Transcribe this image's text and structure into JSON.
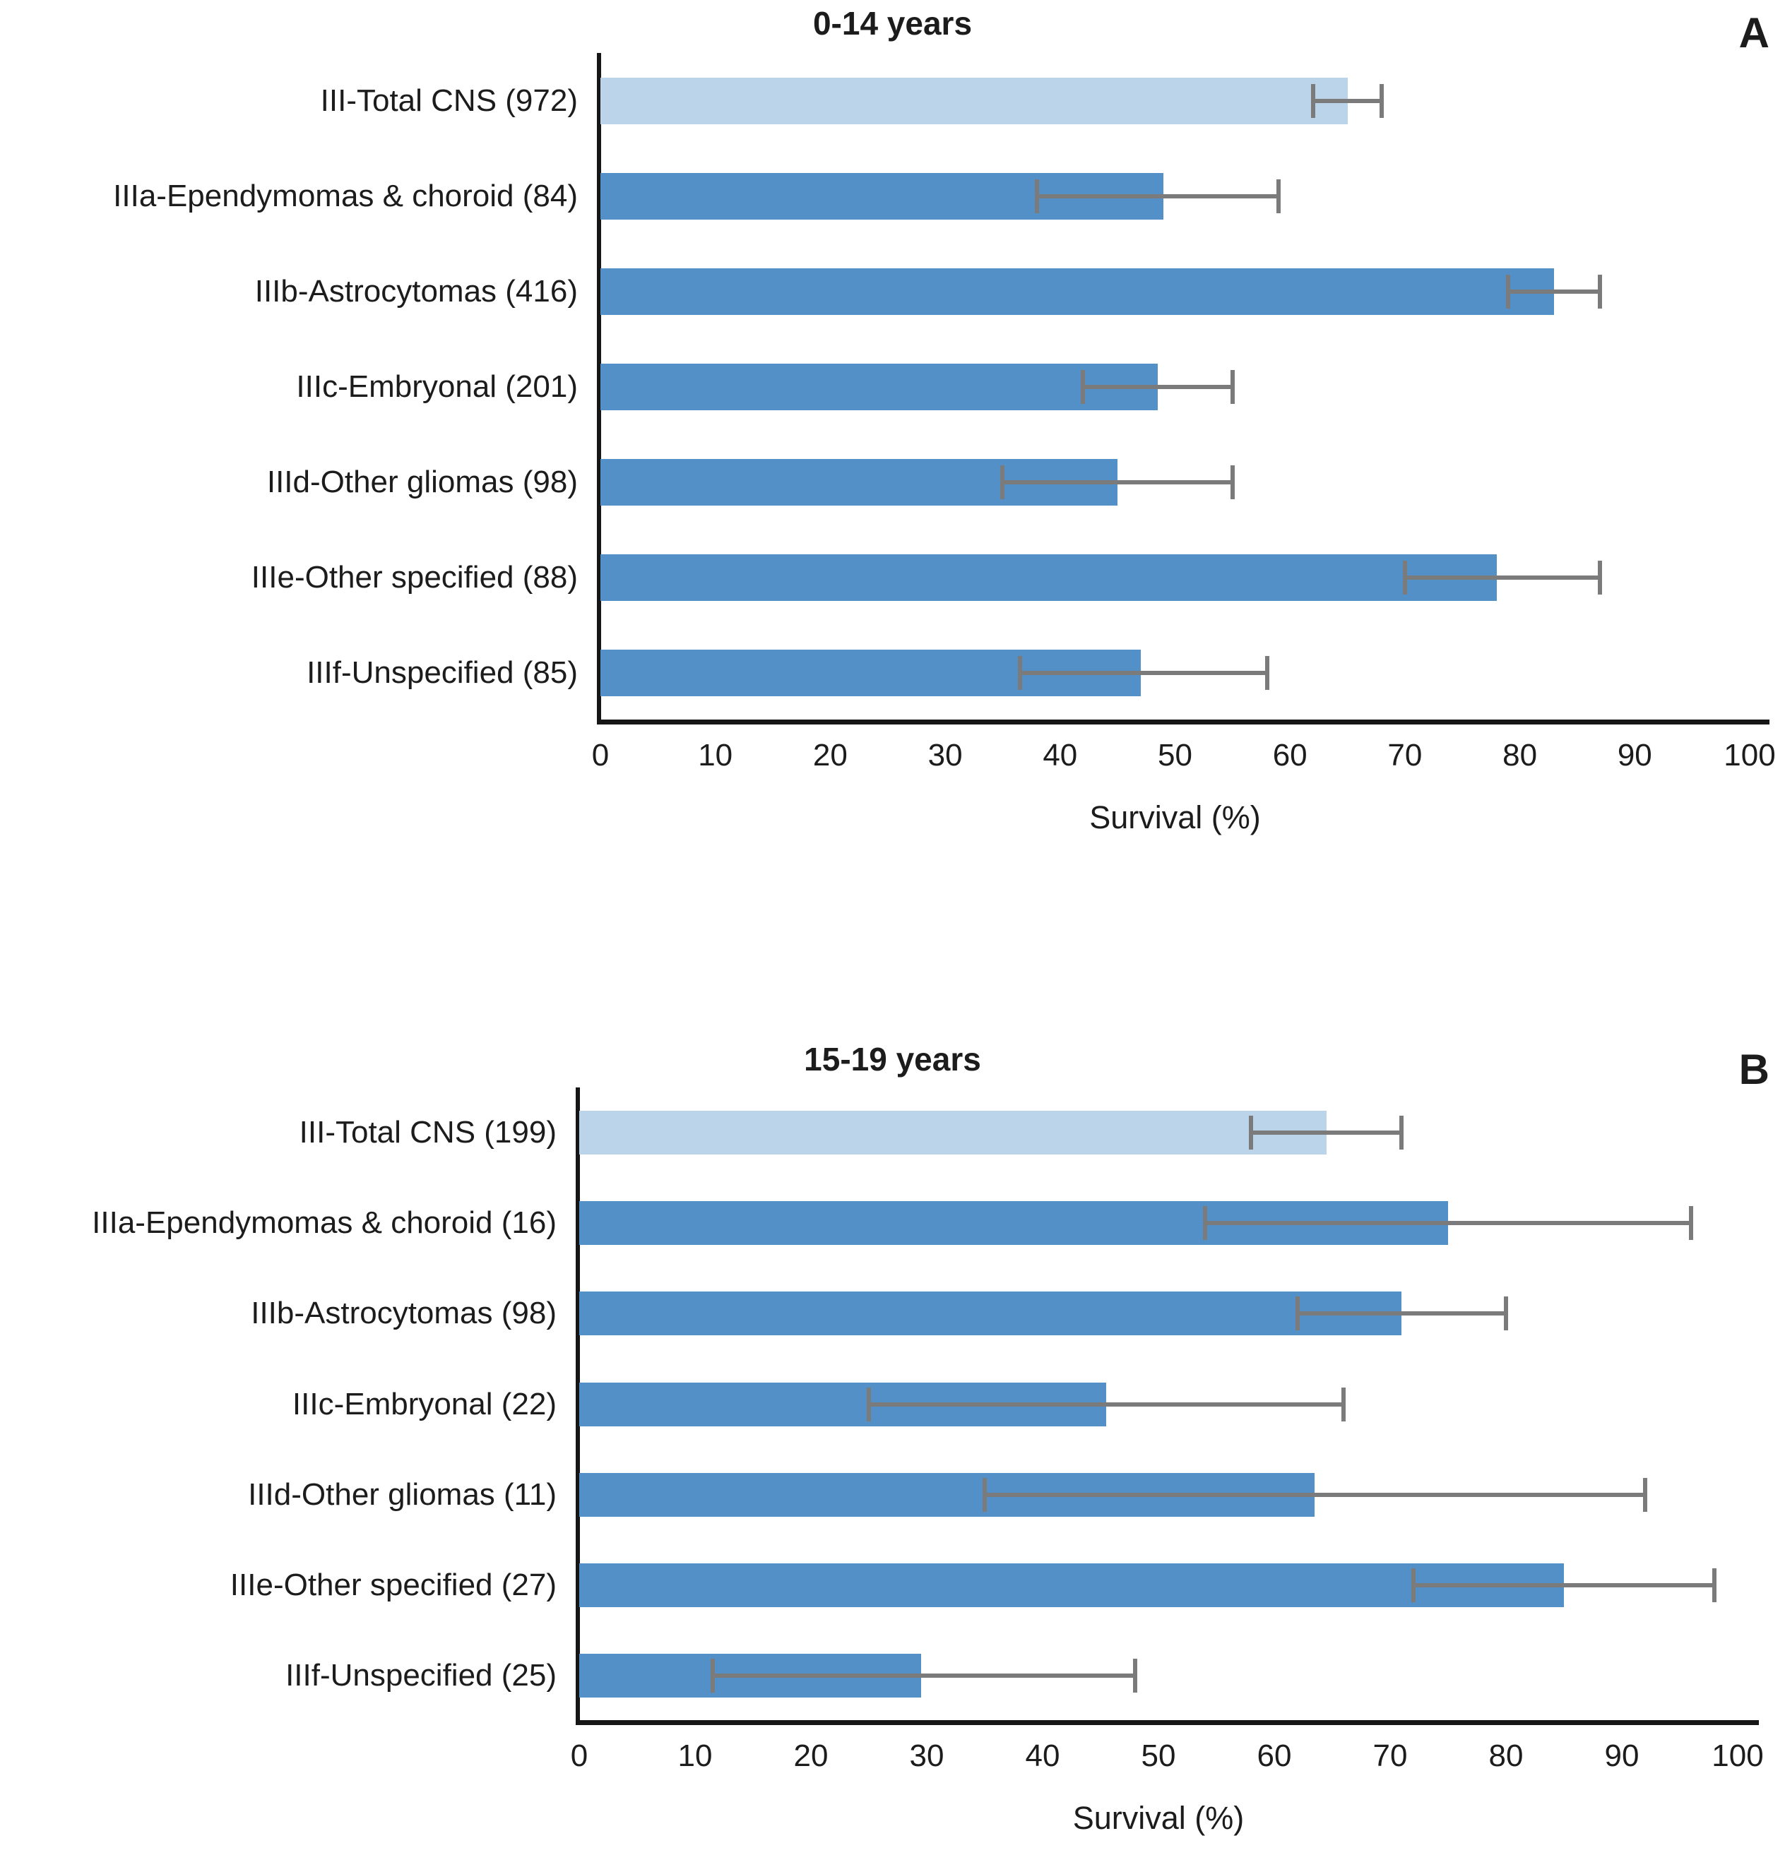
{
  "figure_description": "Two-panel horizontal bar chart of 5-year survival (%) with 95% confidence-interval error bars for CNS tumour diagnostic subgroups in two age groups",
  "colors": {
    "total_bar": "#bcd4ea",
    "subtype_bar": "#5490c8",
    "error_bar": "#7b7b7b",
    "axis": "#161616",
    "text": "#1c1c1c",
    "background": "#ffffff"
  },
  "chart_data": [
    {
      "type": "bar",
      "orientation": "horizontal",
      "panel_letter": "A",
      "title": "0-14 years",
      "xlabel": "Survival (%)",
      "xlim": [
        0,
        100
      ],
      "xticks": [
        0,
        10,
        20,
        30,
        40,
        50,
        60,
        70,
        80,
        90,
        100
      ],
      "grid": false,
      "legend": "none",
      "categories": [
        "III-Total CNS (972)",
        "IIIa-Ependymomas & choroid (84)",
        "IIIb-Astrocytomas (416)",
        "IIIc-Embryonal (201)",
        "IIId-Other gliomas (98)",
        "IIIe-Other specified (88)",
        "IIIf-Unspecified (85)"
      ],
      "values": [
        65,
        49,
        83,
        48.5,
        45,
        78,
        47
      ],
      "ci_low": [
        62,
        38,
        79,
        42,
        35,
        70,
        36.5
      ],
      "ci_high": [
        68,
        59,
        87,
        55,
        55,
        87,
        58
      ],
      "highlight_rows": [
        0
      ]
    },
    {
      "type": "bar",
      "orientation": "horizontal",
      "panel_letter": "B",
      "title": "15-19 years",
      "xlabel": "Survival (%)",
      "xlim": [
        0,
        100
      ],
      "xticks": [
        0,
        10,
        20,
        30,
        40,
        50,
        60,
        70,
        80,
        90,
        100
      ],
      "grid": false,
      "legend": "none",
      "categories": [
        "III-Total CNS (199)",
        "IIIa-Ependymomas & choroid (16)",
        "IIIb-Astrocytomas (98)",
        "IIIc-Embryonal (22)",
        "IIId-Other gliomas (11)",
        "IIIe-Other specified (27)",
        "IIIf-Unspecified (25)"
      ],
      "values": [
        64.5,
        75,
        71,
        45.5,
        63.5,
        85,
        29.5
      ],
      "ci_low": [
        58,
        54,
        62,
        25,
        35,
        72,
        11.5
      ],
      "ci_high": [
        71,
        96,
        80,
        66,
        92,
        98,
        48
      ],
      "highlight_rows": [
        0
      ]
    }
  ]
}
